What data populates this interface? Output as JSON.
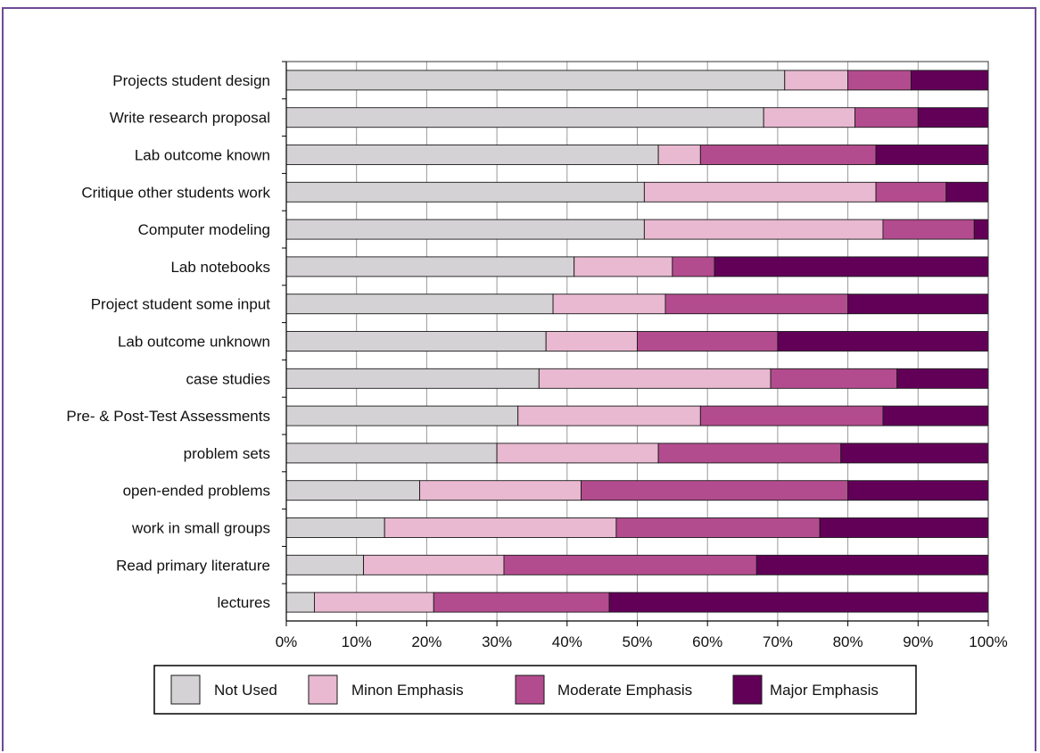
{
  "chart_data": {
    "type": "bar",
    "orientation": "horizontal",
    "stacked": true,
    "percent": true,
    "categories": [
      "Projects student design",
      "Write research proposal",
      "Lab outcome known",
      "Critique other students work",
      "Computer modeling",
      "Lab notebooks",
      "Project student some input",
      "Lab outcome unknown",
      "case studies",
      "Pre- & Post-Test Assessments",
      "problem sets",
      "open-ended problems",
      "work in small groups",
      "Read primary literature",
      "lectures"
    ],
    "series": [
      {
        "name": "Not Used",
        "color": "#d4d2d4",
        "values": [
          71,
          68,
          53,
          51,
          51,
          41,
          38,
          37,
          36,
          33,
          30,
          19,
          14,
          11,
          4
        ]
      },
      {
        "name": "Minon Emphasis",
        "color": "#e8b9d0",
        "values": [
          9,
          13,
          6,
          33,
          34,
          14,
          16,
          13,
          33,
          26,
          23,
          23,
          33,
          20,
          17
        ]
      },
      {
        "name": "Moderate Emphasis",
        "color": "#b34c8e",
        "values": [
          9,
          9,
          25,
          10,
          13,
          6,
          26,
          20,
          18,
          26,
          26,
          38,
          29,
          36,
          25
        ]
      },
      {
        "name": "Major Emphasis",
        "color": "#620058",
        "values": [
          11,
          10,
          16,
          6,
          2,
          39,
          20,
          30,
          13,
          15,
          21,
          20,
          24,
          33,
          54
        ]
      }
    ],
    "x_ticks": [
      "0%",
      "10%",
      "20%",
      "30%",
      "40%",
      "50%",
      "60%",
      "70%",
      "80%",
      "90%",
      "100%"
    ],
    "xlim": [
      0,
      100
    ],
    "grid": true,
    "legend_position": "bottom",
    "title": "",
    "xlabel": "",
    "ylabel": ""
  },
  "frame": {
    "border_color": "#6d4a93"
  }
}
